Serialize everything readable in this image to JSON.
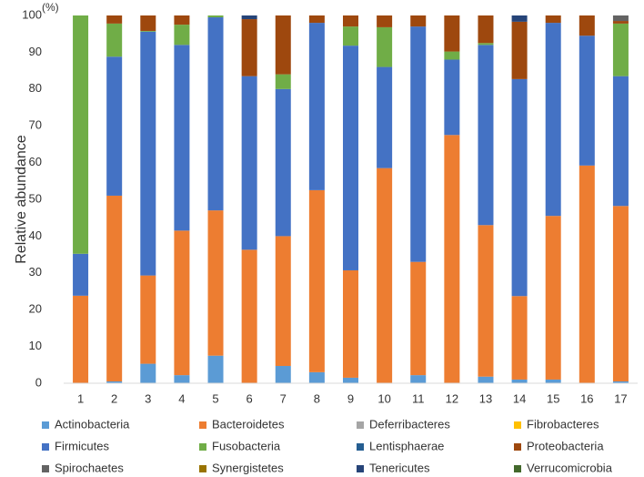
{
  "chart_data": {
    "type": "stacked_bar",
    "y_label": "Relative abundance",
    "y_unit": "(%)",
    "categories": [
      "1",
      "2",
      "3",
      "4",
      "5",
      "6",
      "7",
      "8",
      "9",
      "10",
      "11",
      "12",
      "13",
      "14",
      "15",
      "16",
      "17"
    ],
    "ylim": [
      0,
      100
    ],
    "yticks": [
      0,
      10,
      20,
      30,
      40,
      50,
      60,
      70,
      80,
      90,
      100
    ],
    "grid": false,
    "legend": "bottom",
    "series": [
      {
        "name": "Actinobacteria",
        "color": "#5b9bd5",
        "values": [
          0,
          0.5,
          5.3,
          2.2,
          7.5,
          0,
          4.7,
          3,
          1.5,
          0,
          2.2,
          0,
          1.8,
          1,
          1,
          0,
          0.5
        ]
      },
      {
        "name": "Bacteroidetes",
        "color": "#ed7d31",
        "values": [
          23.8,
          50.5,
          24,
          39.3,
          39.5,
          36.3,
          35.3,
          49.5,
          29.2,
          58.5,
          30.8,
          67.5,
          41.2,
          22.7,
          44.5,
          59.2,
          47.7
        ]
      },
      {
        "name": "Deferribacteres",
        "color": "#a5a5a5",
        "values": [
          0,
          0,
          0,
          0,
          0,
          0,
          0,
          0,
          0,
          0,
          0,
          0,
          0,
          0,
          0,
          0,
          0
        ]
      },
      {
        "name": "Fibrobacteres",
        "color": "#ffc000",
        "values": [
          0,
          0,
          0,
          0,
          0,
          0,
          0,
          0,
          0,
          0,
          0,
          0,
          0,
          0,
          0,
          0,
          0
        ]
      },
      {
        "name": "Firmicutes",
        "color": "#4472c4",
        "values": [
          11.4,
          37.8,
          66.3,
          50.5,
          52.5,
          47.2,
          40,
          45.5,
          61.1,
          27.5,
          64,
          20.5,
          49,
          59,
          52.5,
          35.3,
          35.3
        ]
      },
      {
        "name": "Fusobacteria",
        "color": "#70ad47",
        "values": [
          64.8,
          9,
          0.2,
          5.5,
          0.5,
          0,
          4,
          0,
          5.2,
          10.8,
          0,
          2.2,
          0.5,
          0,
          0,
          0,
          14.3
        ]
      },
      {
        "name": "Lentisphaerae",
        "color": "#255e91",
        "values": [
          0,
          0,
          0,
          0,
          0,
          0,
          0,
          0,
          0,
          0,
          0,
          0,
          0,
          0,
          0,
          0,
          0
        ]
      },
      {
        "name": "Proteobacteria",
        "color": "#9e480e",
        "values": [
          0,
          2.2,
          4.2,
          2.5,
          0,
          15.5,
          16,
          2,
          3,
          3.2,
          3,
          9.8,
          7.5,
          15.6,
          2,
          5.5,
          0.7
        ]
      },
      {
        "name": "Spirochaetes",
        "color": "#636363",
        "values": [
          0,
          0,
          0,
          0,
          0,
          0,
          0,
          0,
          0,
          0,
          0,
          0,
          0,
          0,
          0,
          0,
          1.5
        ]
      },
      {
        "name": "Synergistetes",
        "color": "#997300",
        "values": [
          0,
          0,
          0,
          0,
          0,
          0,
          0,
          0,
          0,
          0,
          0,
          0,
          0,
          0,
          0,
          0,
          0
        ]
      },
      {
        "name": "Tenericutes",
        "color": "#264478",
        "values": [
          0,
          0,
          0,
          0,
          0,
          1,
          0,
          0,
          0,
          0,
          0,
          0,
          0,
          1.7,
          0,
          0,
          0
        ]
      },
      {
        "name": "Verrucomicrobia",
        "color": "#43682b",
        "values": [
          0,
          0,
          0,
          0,
          0,
          0,
          0,
          0,
          0,
          0,
          0,
          0,
          0,
          0,
          0,
          0,
          0
        ]
      }
    ]
  }
}
